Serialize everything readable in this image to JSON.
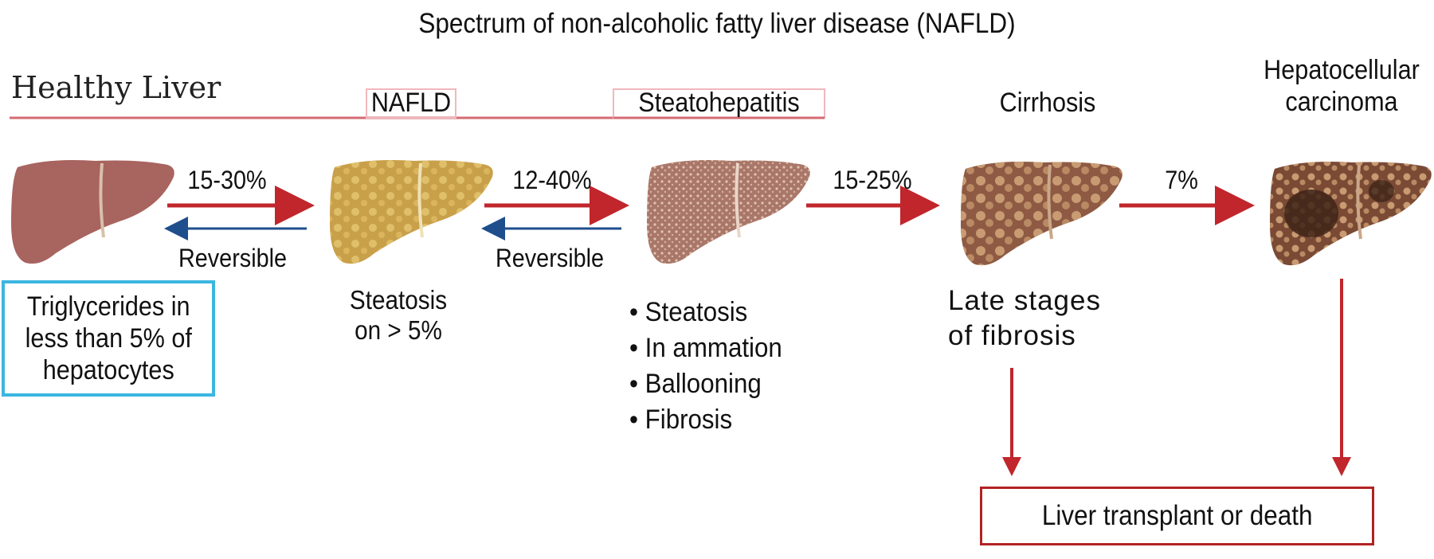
{
  "title": "Spectrum of non-alcoholic fatty liver disease (NAFLD)",
  "header_labels": {
    "healthy": "Healthy Liver",
    "nafld": "NAFLD",
    "steatohepatitis": "Steatohepatitis",
    "cirrhosis": "Cirrhosis",
    "hcc_line1": "Hepatocellular",
    "hcc_line2": "carcinoma"
  },
  "transitions": {
    "t1_pct": "15-30%",
    "t1_back": "Reversible",
    "t2_pct": "12-40%",
    "t2_back": "Reversible",
    "t3_pct": "15-25%",
    "t4_pct": "7%"
  },
  "healthy_box": {
    "line1": "Triglycerides in",
    "line2": "less than 5% of",
    "line3": "hepatocytes"
  },
  "nafld_desc": {
    "line1": "Steatosis",
    "line2": "on > 5%"
  },
  "steatohepatitis_features": [
    "Steatosis",
    "In  ammation",
    "Ballooning",
    "Fibrosis"
  ],
  "cirrhosis_desc": {
    "line1": "Late stages",
    "line2": "of fibrosis"
  },
  "outcome": "Liver transplant or death",
  "colors": {
    "red_arrow": "#c0262b",
    "blue_arrow": "#1f4e8c",
    "box_blue": "#3cb6e0",
    "box_red": "#b22222",
    "liver_healthy": "#a8645f",
    "liver_fatty": "#c9a04a",
    "liver_nash": "#a9776a",
    "liver_cirrhosis": "#8e5a43",
    "liver_hcc": "#7a4a35"
  }
}
